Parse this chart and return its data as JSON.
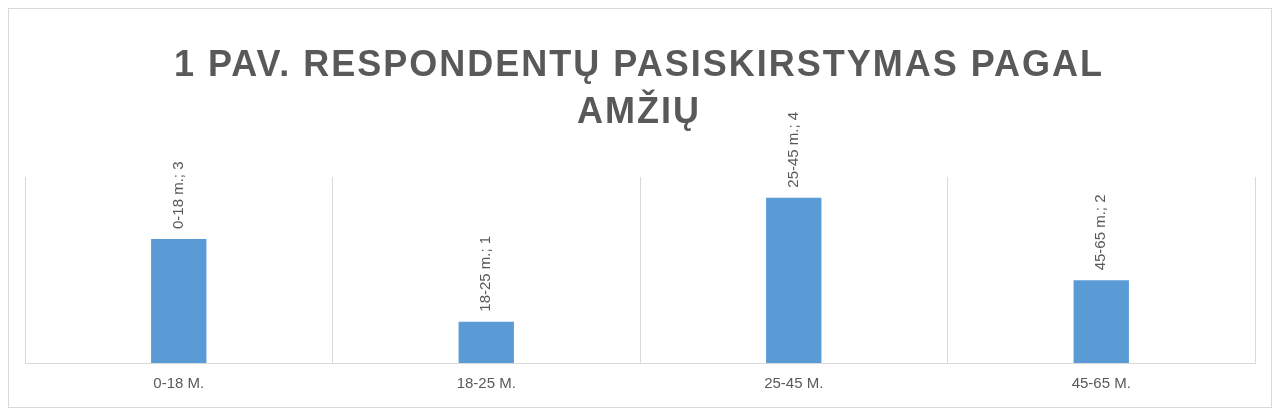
{
  "chart_data": {
    "type": "bar",
    "title": "1 PAV. RESPONDENTŲ PASISKIRSTYMAS PAGAL AMŽIŲ",
    "categories": [
      "0-18 M.",
      "18-25 M.",
      "25-45 M.",
      "45-65 M."
    ],
    "values": [
      3,
      1,
      4,
      2
    ],
    "color": "#5b9bd5",
    "value_labels": [
      "0-18 m.; 3",
      "18-25 m.; 1",
      "25-45 m.; 4",
      "45-65 m.; 2"
    ],
    "grid": "x"
  }
}
